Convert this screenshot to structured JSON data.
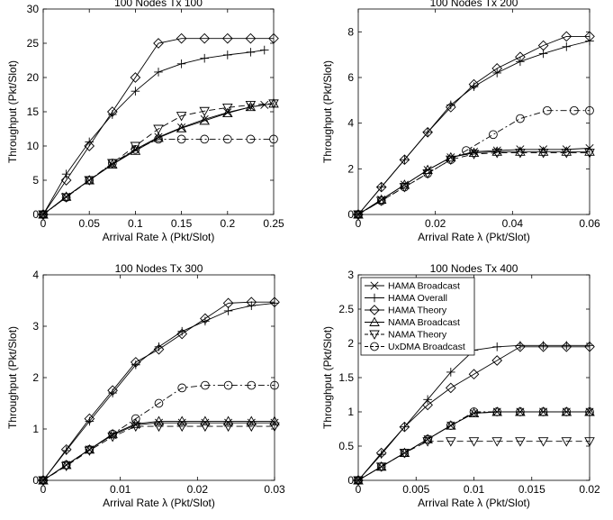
{
  "chart_data": [
    {
      "type": "line",
      "title": "100 Nodes Tx 100",
      "xlabel": "Arrival Rate λ (Pkt/Slot)",
      "ylabel": "Throughput (Pkt/Slot)",
      "xlim": [
        0,
        0.25
      ],
      "ylim": [
        0,
        30
      ],
      "xticks": [
        0,
        0.05,
        0.1,
        0.15,
        0.2,
        0.25
      ],
      "xtick_labels": [
        "0",
        "0.05",
        "0.1",
        "0.15",
        "0.2",
        "0.25"
      ],
      "yticks": [
        0,
        5,
        10,
        15,
        20,
        25,
        30
      ],
      "ytick_labels": [
        "0",
        "5",
        "10",
        "15",
        "20",
        "25",
        "30"
      ],
      "grid": false,
      "series": [
        {
          "name": "HAMA Broadcast",
          "marker": "x",
          "dash": "solid",
          "x": [
            0,
            0.025,
            0.05,
            0.075,
            0.1,
            0.125,
            0.15,
            0.175,
            0.2,
            0.225,
            0.24
          ],
          "y": [
            0,
            2.6,
            5.0,
            7.3,
            9.5,
            11.3,
            12.7,
            13.9,
            14.9,
            15.7,
            16.0
          ]
        },
        {
          "name": "HAMA Overall",
          "marker": "plus",
          "dash": "solid",
          "x": [
            0,
            0.025,
            0.05,
            0.075,
            0.1,
            0.125,
            0.15,
            0.175,
            0.2,
            0.225,
            0.24
          ],
          "y": [
            0,
            5.9,
            10.6,
            14.6,
            18.0,
            20.8,
            22.0,
            22.8,
            23.3,
            23.7,
            24.0
          ]
        },
        {
          "name": "HAMA Theory",
          "marker": "diamond",
          "dash": "solid",
          "x": [
            0,
            0.025,
            0.05,
            0.075,
            0.1,
            0.125,
            0.15,
            0.175,
            0.2,
            0.225,
            0.25
          ],
          "y": [
            0,
            5,
            10,
            15,
            20,
            25,
            25.7,
            25.7,
            25.7,
            25.7,
            25.7
          ]
        },
        {
          "name": "NAMA Broadcast",
          "marker": "triangle-up",
          "dash": "solid",
          "x": [
            0,
            0.025,
            0.05,
            0.075,
            0.1,
            0.125,
            0.15,
            0.175,
            0.2,
            0.225,
            0.25
          ],
          "y": [
            0,
            2.6,
            5.0,
            7.3,
            9.3,
            11.2,
            12.6,
            13.7,
            14.8,
            15.7,
            16.2
          ]
        },
        {
          "name": "NAMA Theory",
          "marker": "triangle-down",
          "dash": "dashed",
          "x": [
            0,
            0.025,
            0.05,
            0.075,
            0.1,
            0.125,
            0.15,
            0.175,
            0.2,
            0.225,
            0.25
          ],
          "y": [
            0,
            2.5,
            5.0,
            7.5,
            10.0,
            12.5,
            14.4,
            15.1,
            15.6,
            16.0,
            16.2
          ]
        },
        {
          "name": "UxDMA Broadcast",
          "marker": "circle",
          "dash": "dashdot",
          "x": [
            0,
            0.025,
            0.05,
            0.075,
            0.1,
            0.125,
            0.15,
            0.175,
            0.2,
            0.225,
            0.25
          ],
          "y": [
            0,
            2.5,
            5.0,
            7.5,
            9.5,
            11.0,
            11.0,
            11.0,
            11.0,
            11.0,
            11.0
          ]
        }
      ]
    },
    {
      "type": "line",
      "title": "100 Nodes Tx 200",
      "xlabel": "Arrival Rate λ (Pkt/Slot)",
      "ylabel": "Throughput (Pkt/Slot)",
      "xlim": [
        0,
        0.06
      ],
      "ylim": [
        0,
        9
      ],
      "xticks": [
        0,
        0.02,
        0.04,
        0.06
      ],
      "xtick_labels": [
        "0",
        "0.02",
        "0.04",
        "0.06"
      ],
      "yticks": [
        0,
        2,
        4,
        6,
        8
      ],
      "ytick_labels": [
        "0",
        "2",
        "4",
        "6",
        "8"
      ],
      "grid": false,
      "series": [
        {
          "name": "HAMA Broadcast",
          "marker": "x",
          "dash": "solid",
          "x": [
            0,
            0.006,
            0.012,
            0.018,
            0.024,
            0.03,
            0.036,
            0.042,
            0.048,
            0.054,
            0.06
          ],
          "y": [
            0,
            0.65,
            1.3,
            1.95,
            2.5,
            2.75,
            2.8,
            2.85,
            2.85,
            2.85,
            2.9
          ]
        },
        {
          "name": "HAMA Overall",
          "marker": "plus",
          "dash": "solid",
          "x": [
            0,
            0.006,
            0.012,
            0.018,
            0.024,
            0.03,
            0.036,
            0.042,
            0.048,
            0.054,
            0.06
          ],
          "y": [
            0,
            1.2,
            2.4,
            3.6,
            4.8,
            5.6,
            6.2,
            6.7,
            7.05,
            7.35,
            7.6
          ]
        },
        {
          "name": "HAMA Theory",
          "marker": "diamond",
          "dash": "solid",
          "x": [
            0,
            0.006,
            0.012,
            0.018,
            0.024,
            0.03,
            0.036,
            0.042,
            0.048,
            0.054,
            0.06
          ],
          "y": [
            0,
            1.2,
            2.4,
            3.6,
            4.7,
            5.7,
            6.4,
            6.9,
            7.4,
            7.8,
            7.8
          ]
        },
        {
          "name": "NAMA Broadcast",
          "marker": "triangle-up",
          "dash": "solid",
          "x": [
            0,
            0.006,
            0.012,
            0.018,
            0.024,
            0.03,
            0.036,
            0.042,
            0.048,
            0.054,
            0.06
          ],
          "y": [
            0,
            0.65,
            1.3,
            1.95,
            2.5,
            2.7,
            2.75,
            2.75,
            2.75,
            2.75,
            2.75
          ]
        },
        {
          "name": "NAMA Theory",
          "marker": "triangle-down",
          "dash": "dashed",
          "x": [
            0,
            0.006,
            0.012,
            0.018,
            0.024,
            0.03,
            0.036,
            0.042,
            0.048,
            0.054,
            0.06
          ],
          "y": [
            0,
            0.6,
            1.2,
            1.8,
            2.4,
            2.65,
            2.7,
            2.7,
            2.7,
            2.7,
            2.7
          ]
        },
        {
          "name": "UxDMA Broadcast",
          "marker": "circle",
          "dash": "dashdot",
          "x": [
            0,
            0.006,
            0.012,
            0.018,
            0.024,
            0.028,
            0.035,
            0.042,
            0.049,
            0.056,
            0.06
          ],
          "y": [
            0,
            0.6,
            1.2,
            1.8,
            2.4,
            2.8,
            3.5,
            4.2,
            4.55,
            4.55,
            4.55
          ]
        }
      ]
    },
    {
      "type": "line",
      "title": "100 Nodes Tx 300",
      "xlabel": "Arrival Rate λ (Pkt/Slot)",
      "ylabel": "Throughput (Pkt/Slot)",
      "xlim": [
        0,
        0.03
      ],
      "ylim": [
        0,
        4
      ],
      "xticks": [
        0,
        0.01,
        0.02,
        0.03
      ],
      "xtick_labels": [
        "0",
        "0.01",
        "0.02",
        "0.03"
      ],
      "yticks": [
        0,
        1,
        2,
        3,
        4
      ],
      "ytick_labels": [
        "0",
        "1",
        "2",
        "3",
        "4"
      ],
      "grid": false,
      "series": [
        {
          "name": "HAMA Broadcast",
          "marker": "x",
          "dash": "solid",
          "x": [
            0,
            0.003,
            0.006,
            0.009,
            0.012,
            0.015,
            0.018,
            0.021,
            0.024,
            0.027,
            0.03
          ],
          "y": [
            0,
            0.3,
            0.6,
            0.88,
            1.08,
            1.12,
            1.12,
            1.12,
            1.12,
            1.12,
            1.12
          ]
        },
        {
          "name": "HAMA Overall",
          "marker": "plus",
          "dash": "solid",
          "x": [
            0,
            0.003,
            0.006,
            0.009,
            0.012,
            0.015,
            0.018,
            0.021,
            0.024,
            0.027,
            0.03
          ],
          "y": [
            0,
            0.58,
            1.15,
            1.7,
            2.25,
            2.6,
            2.9,
            3.1,
            3.3,
            3.4,
            3.45
          ]
        },
        {
          "name": "HAMA Theory",
          "marker": "diamond",
          "dash": "solid",
          "x": [
            0,
            0.003,
            0.006,
            0.009,
            0.012,
            0.015,
            0.018,
            0.021,
            0.024,
            0.027,
            0.03
          ],
          "y": [
            0,
            0.6,
            1.2,
            1.75,
            2.3,
            2.55,
            2.85,
            3.15,
            3.45,
            3.47,
            3.47
          ]
        },
        {
          "name": "NAMA Broadcast",
          "marker": "triangle-up",
          "dash": "solid",
          "x": [
            0,
            0.003,
            0.006,
            0.009,
            0.012,
            0.015,
            0.018,
            0.021,
            0.024,
            0.027,
            0.03
          ],
          "y": [
            0,
            0.3,
            0.6,
            0.9,
            1.1,
            1.15,
            1.15,
            1.15,
            1.15,
            1.15,
            1.15
          ]
        },
        {
          "name": "NAMA Theory",
          "marker": "triangle-down",
          "dash": "dashed",
          "x": [
            0,
            0.003,
            0.006,
            0.009,
            0.012,
            0.015,
            0.018,
            0.021,
            0.024,
            0.027,
            0.03
          ],
          "y": [
            0,
            0.28,
            0.58,
            0.85,
            1.05,
            1.05,
            1.05,
            1.05,
            1.05,
            1.05,
            1.05
          ]
        },
        {
          "name": "UxDMA Broadcast",
          "marker": "circle",
          "dash": "dashdot",
          "x": [
            0,
            0.003,
            0.006,
            0.009,
            0.012,
            0.015,
            0.018,
            0.021,
            0.024,
            0.027,
            0.03
          ],
          "y": [
            0,
            0.3,
            0.6,
            0.9,
            1.2,
            1.5,
            1.8,
            1.85,
            1.85,
            1.85,
            1.85
          ]
        }
      ]
    },
    {
      "type": "line",
      "title": "100 Nodes Tx 400",
      "xlabel": "Arrival Rate λ (Pkt/Slot)",
      "ylabel": "Throughput (Pkt/Slot)",
      "xlim": [
        0,
        0.02
      ],
      "ylim": [
        0,
        3
      ],
      "xticks": [
        0,
        0.005,
        0.01,
        0.015,
        0.02
      ],
      "xtick_labels": [
        "0",
        "0.005",
        "0.01",
        "0.015",
        "0.02"
      ],
      "yticks": [
        0,
        0.5,
        1,
        1.5,
        2,
        2.5,
        3
      ],
      "ytick_labels": [
        "0",
        "0.5",
        "1",
        "1.5",
        "2",
        "2.5",
        "3"
      ],
      "grid": false,
      "legend_position": "top-left",
      "series": [
        {
          "name": "HAMA Broadcast",
          "marker": "x",
          "dash": "solid",
          "x": [
            0,
            0.002,
            0.004,
            0.006,
            0.008,
            0.01,
            0.012,
            0.014,
            0.016,
            0.018,
            0.02
          ],
          "y": [
            0,
            0.2,
            0.4,
            0.6,
            0.8,
            0.98,
            1.0,
            1.0,
            1.0,
            1.0,
            1.0
          ]
        },
        {
          "name": "HAMA Overall",
          "marker": "plus",
          "dash": "solid",
          "x": [
            0,
            0.002,
            0.004,
            0.006,
            0.008,
            0.01,
            0.012,
            0.014,
            0.016,
            0.018,
            0.02
          ],
          "y": [
            0,
            0.38,
            0.78,
            1.18,
            1.58,
            1.9,
            1.95,
            1.97,
            1.97,
            1.97,
            1.97
          ]
        },
        {
          "name": "HAMA Theory",
          "marker": "diamond",
          "dash": "solid",
          "x": [
            0,
            0.002,
            0.004,
            0.006,
            0.008,
            0.01,
            0.012,
            0.014,
            0.016,
            0.018,
            0.02
          ],
          "y": [
            0,
            0.4,
            0.78,
            1.1,
            1.35,
            1.55,
            1.75,
            1.95,
            1.95,
            1.95,
            1.95
          ]
        },
        {
          "name": "NAMA Broadcast",
          "marker": "triangle-up",
          "dash": "solid",
          "x": [
            0,
            0.002,
            0.004,
            0.006,
            0.008,
            0.01,
            0.012,
            0.014,
            0.016,
            0.018,
            0.02
          ],
          "y": [
            0,
            0.2,
            0.4,
            0.6,
            0.8,
            0.98,
            1.0,
            1.0,
            1.0,
            1.0,
            1.0
          ]
        },
        {
          "name": "NAMA Theory",
          "marker": "triangle-down",
          "dash": "dashed",
          "x": [
            0,
            0.002,
            0.004,
            0.006,
            0.008,
            0.01,
            0.012,
            0.014,
            0.016,
            0.018,
            0.02
          ],
          "y": [
            0,
            0.2,
            0.4,
            0.57,
            0.57,
            0.57,
            0.57,
            0.57,
            0.57,
            0.57,
            0.57
          ]
        },
        {
          "name": "UxDMA Broadcast",
          "marker": "circle",
          "dash": "dashdot",
          "x": [
            0,
            0.002,
            0.004,
            0.006,
            0.008,
            0.01,
            0.012,
            0.014,
            0.016,
            0.018,
            0.02
          ],
          "y": [
            0,
            0.2,
            0.4,
            0.6,
            0.8,
            1.0,
            1.0,
            1.0,
            1.0,
            1.0,
            1.0
          ]
        }
      ]
    }
  ]
}
